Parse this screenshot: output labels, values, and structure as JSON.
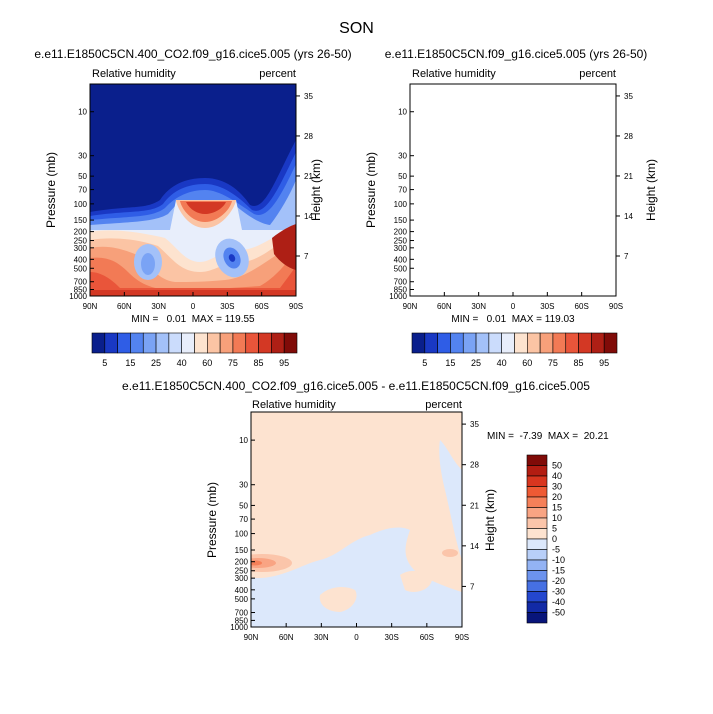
{
  "page_title": "SON",
  "chart_data": [
    {
      "type": "heatmap",
      "title": "e.e11.E1850C5CN.400_CO2.f09_g16.cice5.005 (yrs 26-50)",
      "left_label": "Relative humidity",
      "right_label": "percent",
      "ylabel": "Pressure (mb)",
      "ylabel_right": "Height (km)",
      "x_ticks": [
        "90N",
        "60N",
        "30N",
        "0",
        "30S",
        "60S",
        "90S"
      ],
      "y_ticks": [
        "10",
        "30",
        "50",
        "70",
        "100",
        "150",
        "200",
        "250",
        "300",
        "400",
        "500",
        "700",
        "850",
        "1000"
      ],
      "y_ticks_right": [
        "35",
        "28",
        "21",
        "14",
        "7"
      ],
      "stats": "MIN =   0.01  MAX = 119.55",
      "colorbar_labels": [
        "5",
        "15",
        "25",
        "40",
        "60",
        "75",
        "85",
        "95"
      ],
      "colorbar_colors": [
        "#0a1f8c",
        "#1938c4",
        "#2f5de6",
        "#5383f0",
        "#7aa3f5",
        "#a3c1f9",
        "#cbdcfc",
        "#e8eefb",
        "#fde3cf",
        "#fbc4a4",
        "#f7a07a",
        "#f27a55",
        "#e9553a",
        "#d33824",
        "#ae1f15",
        "#800b08"
      ]
    },
    {
      "type": "heatmap",
      "title": "e.e11.E1850C5CN.f09_g16.cice5.005 (yrs 26-50)",
      "left_label": "Relative humidity",
      "right_label": "percent",
      "ylabel": "Pressure (mb)",
      "ylabel_right": "Height (km)",
      "x_ticks": [
        "90N",
        "60N",
        "30N",
        "0",
        "30S",
        "60S",
        "90S"
      ],
      "y_ticks": [
        "10",
        "30",
        "50",
        "70",
        "100",
        "150",
        "200",
        "250",
        "300",
        "400",
        "500",
        "700",
        "850",
        "1000"
      ],
      "y_ticks_right": [
        "35",
        "28",
        "21",
        "14",
        "7"
      ],
      "stats": "MIN =   0.01  MAX = 119.03",
      "colorbar_labels": [
        "5",
        "15",
        "25",
        "40",
        "60",
        "75",
        "85",
        "95"
      ],
      "colorbar_colors": [
        "#0a1f8c",
        "#1938c4",
        "#2f5de6",
        "#5383f0",
        "#7aa3f5",
        "#a3c1f9",
        "#cbdcfc",
        "#e8eefb",
        "#fde3cf",
        "#fbc4a4",
        "#f7a07a",
        "#f27a55",
        "#e9553a",
        "#d33824",
        "#ae1f15",
        "#800b08"
      ]
    },
    {
      "type": "heatmap",
      "title": "e.e11.E1850C5CN.400_CO2.f09_g16.cice5.005 - e.e11.E1850C5CN.f09_g16.cice5.005",
      "left_label": "Relative humidity",
      "right_label": "percent",
      "ylabel": "Pressure (mb)",
      "ylabel_right": "Height (km)",
      "x_ticks": [
        "90N",
        "60N",
        "30N",
        "0",
        "30S",
        "60S",
        "90S"
      ],
      "y_ticks": [
        "10",
        "30",
        "50",
        "70",
        "100",
        "150",
        "200",
        "250",
        "300",
        "400",
        "500",
        "700",
        "850",
        "1000"
      ],
      "y_ticks_right": [
        "35",
        "28",
        "21",
        "14",
        "7"
      ],
      "stats": "MIN =  -7.39  MAX =  20.21",
      "colorbar_labels": [
        "50",
        "40",
        "30",
        "20",
        "15",
        "10",
        "5",
        "0",
        "-5",
        "-10",
        "-15",
        "-20",
        "-30",
        "-40",
        "-50"
      ],
      "colorbar_colors": [
        "#800b08",
        "#b31d12",
        "#d8361f",
        "#ee5a34",
        "#f58059",
        "#f9a483",
        "#fbc5aa",
        "#fde3d0",
        "#dce8fb",
        "#b8cff8",
        "#93b3f4",
        "#6c93ee",
        "#4670e3",
        "#2447cf",
        "#122aa6",
        "#08157a"
      ]
    }
  ]
}
